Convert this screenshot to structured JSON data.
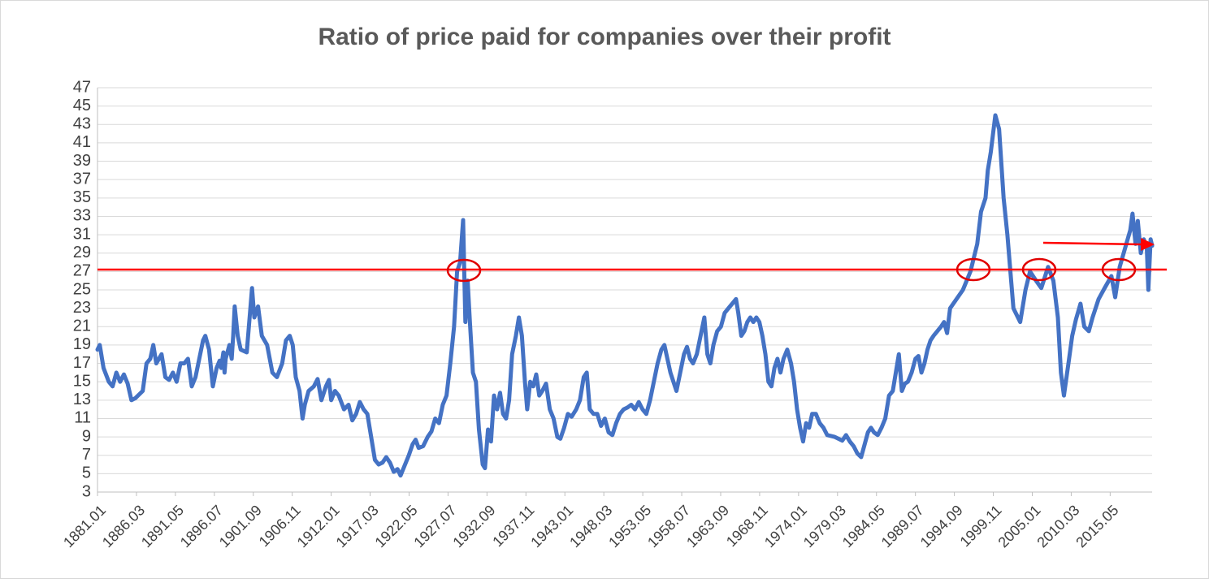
{
  "chart_data": {
    "type": "line",
    "title": "Ratio of price paid for companies over their profit",
    "color": "#4472c4",
    "grid": true,
    "xlim": [
      1881.0,
      2020.9
    ],
    "ylim": [
      3,
      47
    ],
    "yticks": [
      3,
      5,
      7,
      9,
      11,
      13,
      15,
      17,
      19,
      21,
      23,
      25,
      27,
      29,
      31,
      33,
      35,
      37,
      39,
      41,
      43,
      45,
      47
    ],
    "xticks": [
      {
        "value": 1881.0,
        "label": "1881.01"
      },
      {
        "value": 1886.167,
        "label": "1886.03"
      },
      {
        "value": 1891.333,
        "label": "1891.05"
      },
      {
        "value": 1896.5,
        "label": "1896.07"
      },
      {
        "value": 1901.667,
        "label": "1901.09"
      },
      {
        "value": 1906.833,
        "label": "1906.11"
      },
      {
        "value": 1912.0,
        "label": "1912.01"
      },
      {
        "value": 1917.167,
        "label": "1917.03"
      },
      {
        "value": 1922.333,
        "label": "1922.05"
      },
      {
        "value": 1927.5,
        "label": "1927.07"
      },
      {
        "value": 1932.667,
        "label": "1932.09"
      },
      {
        "value": 1937.833,
        "label": "1937.11"
      },
      {
        "value": 1943.0,
        "label": "1943.01"
      },
      {
        "value": 1948.167,
        "label": "1948.03"
      },
      {
        "value": 1953.333,
        "label": "1953.05"
      },
      {
        "value": 1958.5,
        "label": "1958.07"
      },
      {
        "value": 1963.667,
        "label": "1963.09"
      },
      {
        "value": 1968.833,
        "label": "1968.11"
      },
      {
        "value": 1974.0,
        "label": "1974.01"
      },
      {
        "value": 1979.167,
        "label": "1979.03"
      },
      {
        "value": 1984.333,
        "label": "1984.05"
      },
      {
        "value": 1989.5,
        "label": "1989.07"
      },
      {
        "value": 1994.667,
        "label": "1994.09"
      },
      {
        "value": 1999.833,
        "label": "1999.11"
      },
      {
        "value": 2005.0,
        "label": "2005.01"
      },
      {
        "value": 2010.167,
        "label": "2010.03"
      },
      {
        "value": 2015.333,
        "label": "2015.05"
      }
    ],
    "x": [
      1881.0,
      1881.3,
      1881.8,
      1882.5,
      1883.0,
      1883.5,
      1884.0,
      1884.5,
      1885.0,
      1885.5,
      1886.0,
      1887.0,
      1887.5,
      1888.0,
      1888.4,
      1888.8,
      1889.5,
      1890.0,
      1890.5,
      1891.0,
      1891.5,
      1892.0,
      1892.5,
      1893.0,
      1893.5,
      1894.0,
      1895.0,
      1895.3,
      1895.8,
      1896.3,
      1896.8,
      1897.2,
      1897.4,
      1897.7,
      1897.85,
      1898.0,
      1898.5,
      1898.8,
      1899.0,
      1899.2,
      1899.6,
      1900.0,
      1900.8,
      1901.5,
      1901.8,
      1902.3,
      1902.8,
      1903.5,
      1904.2,
      1904.8,
      1905.5,
      1906.0,
      1906.5,
      1906.9,
      1907.3,
      1907.8,
      1908.2,
      1908.5,
      1909.0,
      1909.7,
      1910.2,
      1910.7,
      1911.3,
      1911.7,
      1912.0,
      1912.5,
      1913.0,
      1913.7,
      1914.3,
      1914.8,
      1915.3,
      1915.8,
      1916.3,
      1916.8,
      1917.3,
      1917.8,
      1918.3,
      1918.8,
      1919.3,
      1919.8,
      1920.3,
      1920.8,
      1921.2,
      1921.7,
      1922.3,
      1922.8,
      1923.2,
      1923.6,
      1924.2,
      1924.8,
      1925.3,
      1925.8,
      1926.3,
      1926.8,
      1927.3,
      1927.8,
      1928.3,
      1928.7,
      1929.1,
      1929.5,
      1929.8,
      1930.1,
      1930.4,
      1930.8,
      1931.2,
      1931.6,
      1932.1,
      1932.4,
      1932.8,
      1933.2,
      1933.6,
      1934.0,
      1934.4,
      1934.8,
      1935.2,
      1935.6,
      1936.0,
      1936.5,
      1936.9,
      1937.3,
      1937.7,
      1938.0,
      1938.4,
      1938.8,
      1939.2,
      1939.6,
      1940.0,
      1940.5,
      1941.0,
      1941.5,
      1942.0,
      1942.4,
      1942.9,
      1943.4,
      1943.9,
      1944.5,
      1945.0,
      1945.5,
      1945.9,
      1946.3,
      1946.8,
      1947.3,
      1947.8,
      1948.3,
      1948.8,
      1949.3,
      1949.8,
      1950.3,
      1950.8,
      1951.3,
      1951.8,
      1952.3,
      1952.8,
      1953.3,
      1953.8,
      1954.3,
      1954.8,
      1955.3,
      1955.8,
      1956.2,
      1956.6,
      1957.0,
      1957.4,
      1957.8,
      1958.3,
      1958.8,
      1959.2,
      1959.6,
      1960.0,
      1960.5,
      1961.0,
      1961.5,
      1961.9,
      1962.3,
      1962.7,
      1963.2,
      1963.7,
      1964.2,
      1964.7,
      1965.2,
      1965.7,
      1966.0,
      1966.4,
      1966.8,
      1967.2,
      1967.6,
      1968.0,
      1968.4,
      1968.8,
      1969.2,
      1969.6,
      1970.0,
      1970.4,
      1970.8,
      1971.2,
      1971.6,
      1972.0,
      1972.5,
      1973.0,
      1973.4,
      1973.8,
      1974.2,
      1974.6,
      1975.0,
      1975.4,
      1975.8,
      1976.3,
      1976.8,
      1977.3,
      1977.8,
      1978.3,
      1978.8,
      1979.3,
      1979.8,
      1980.3,
      1980.8,
      1981.3,
      1981.8,
      1982.3,
      1982.7,
      1983.2,
      1983.6,
      1984.0,
      1984.5,
      1985.0,
      1985.5,
      1986.0,
      1986.5,
      1986.9,
      1987.3,
      1987.7,
      1988.1,
      1988.5,
      1989.0,
      1989.5,
      1989.9,
      1990.3,
      1990.7,
      1991.1,
      1991.5,
      1991.9,
      1992.4,
      1992.9,
      1993.3,
      1993.7,
      1994.1,
      1995.8,
      1996.8,
      1997.7,
      1998.2,
      1998.8,
      1999.1,
      1999.5,
      2000.1,
      2000.6,
      2001.2,
      2001.7,
      2002.0,
      2002.5,
      2003.4,
      2004.1,
      2004.7,
      2005.5,
      2006.2,
      2007.1,
      2007.8,
      2008.4,
      2008.8,
      2009.2,
      2009.8,
      2010.3,
      2010.8,
      2011.4,
      2011.9,
      2012.5,
      2013.0,
      2013.8,
      2014.6,
      2015.5,
      2016.0,
      2016.6,
      2017.3,
      2018.0,
      2018.3,
      2018.7,
      2019.0,
      2019.4,
      2019.8,
      2020.2,
      2020.4,
      2020.7,
      2020.9
    ],
    "values": [
      18.5,
      19,
      16.5,
      15,
      14.5,
      16,
      15,
      15.8,
      14.8,
      13,
      13.2,
      14,
      17,
      17.5,
      19,
      17,
      18,
      15.5,
      15.2,
      16,
      15,
      17,
      17,
      17.5,
      14.5,
      15.5,
      19.5,
      20,
      18.5,
      14.5,
      16.5,
      17.3,
      16.5,
      18.2,
      16,
      17.5,
      19,
      17.5,
      20,
      23.2,
      20,
      18.5,
      18.2,
      25.2,
      22,
      23.2,
      20,
      19,
      16,
      15.5,
      17,
      19.5,
      20,
      19,
      15.5,
      14,
      11,
      12.5,
      14,
      14.5,
      15.3,
      13,
      14.5,
      15.2,
      13,
      14,
      13.5,
      12,
      12.5,
      10.8,
      11.5,
      12.8,
      12,
      11.5,
      9,
      6.5,
      6,
      6.2,
      6.8,
      6.2,
      5.2,
      5.5,
      4.8,
      5.8,
      7,
      8.2,
      8.7,
      7.8,
      8,
      9,
      9.6,
      11,
      10.5,
      12.5,
      13.5,
      17,
      21,
      27,
      28,
      32.6,
      21.5,
      26,
      21.5,
      16,
      15,
      9.8,
      6,
      5.6,
      9.8,
      8.5,
      13.5,
      12,
      13.8,
      11.5,
      11,
      13,
      18,
      20,
      22,
      20,
      15,
      12,
      15,
      14.5,
      15.8,
      13.5,
      14,
      14.8,
      12,
      11,
      9,
      8.8,
      10,
      11.5,
      11.2,
      12,
      13,
      15.5,
      16,
      12,
      11.5,
      11.5,
      10.2,
      11,
      9.5,
      9.2,
      10.5,
      11.5,
      12,
      12.2,
      12.5,
      12,
      12.8,
      12,
      11.5,
      13,
      15,
      17,
      18.5,
      19,
      17.5,
      16,
      15,
      14,
      16,
      18,
      18.8,
      17.5,
      17,
      18,
      20,
      22,
      18,
      17,
      19,
      20.5,
      21,
      22.5,
      23,
      23.5,
      24,
      22.5,
      20,
      20.5,
      21.5,
      22,
      21.5,
      22,
      21.5,
      20,
      18,
      15,
      14.5,
      16.5,
      17.5,
      16,
      17.5,
      18.5,
      17,
      15,
      12,
      10,
      8.5,
      10.5,
      10,
      11.5,
      11.5,
      10.5,
      10,
      9.2,
      9.1,
      9,
      8.8,
      8.6,
      9.2,
      8.5,
      8,
      7.2,
      6.8,
      8,
      9.5,
      10,
      9.5,
      9.2,
      10,
      11,
      13.5,
      14,
      16,
      18,
      14,
      14.8,
      15,
      16,
      17.5,
      17.8,
      16,
      17,
      18.5,
      19.5,
      20,
      20.5,
      21,
      21.5,
      20.3,
      23,
      25,
      27,
      30,
      33.5,
      35,
      38,
      40,
      44,
      42.5,
      35,
      31,
      28,
      23,
      21.5,
      25,
      27,
      26,
      25.2,
      27.5,
      26,
      22,
      16,
      13.5,
      17,
      20,
      21.8,
      23.5,
      21,
      20.5,
      22,
      24,
      25.2,
      26.5,
      24.2,
      27.5,
      29.5,
      31.5,
      33.3,
      30,
      32.5,
      29,
      30.5,
      29.5,
      25,
      30.5,
      29.8
    ]
  }
}
